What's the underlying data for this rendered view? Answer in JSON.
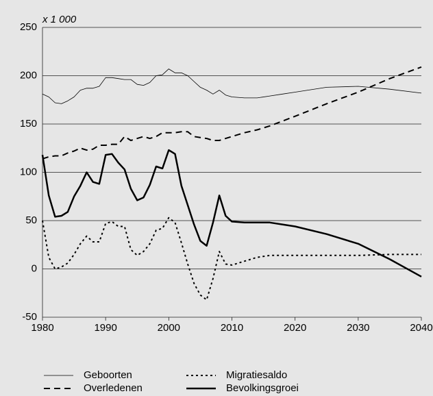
{
  "chart_data": {
    "type": "line",
    "ylabel": "x 1 000",
    "x": [
      1980,
      1981,
      1982,
      1983,
      1984,
      1985,
      1986,
      1987,
      1988,
      1989,
      1990,
      1991,
      1992,
      1993,
      1994,
      1995,
      1996,
      1997,
      1998,
      1999,
      2000,
      2001,
      2002,
      2003,
      2004,
      2005,
      2006,
      2007,
      2008,
      2009,
      2010,
      2012,
      2014,
      2016,
      2018,
      2020,
      2025,
      2030,
      2035,
      2040
    ],
    "series": [
      {
        "name": "Geboorten",
        "color": "#000000",
        "width": 0.8,
        "dash": "none",
        "values": [
          181,
          178,
          172,
          171,
          174,
          178,
          185,
          187,
          187,
          189,
          198,
          198,
          197,
          196,
          196,
          191,
          190,
          193,
          200,
          201,
          207,
          203,
          203,
          200,
          194,
          188,
          185,
          181,
          185,
          180,
          178,
          177,
          177,
          179,
          181,
          183,
          188,
          189,
          186,
          182
        ]
      },
      {
        "name": "Overledenen",
        "color": "#000000",
        "width": 2,
        "dash": "9 6",
        "values": [
          114,
          116,
          117,
          117,
          120,
          122,
          125,
          123,
          124,
          128,
          128,
          129,
          129,
          137,
          133,
          135,
          137,
          135,
          137,
          141,
          141,
          141,
          142,
          142,
          137,
          136,
          135,
          133,
          133,
          135,
          137,
          141,
          144,
          148,
          153,
          158,
          171,
          183,
          197,
          209
        ]
      },
      {
        "name": "Migratiesaldo",
        "color": "#000000",
        "width": 2,
        "dash": "3 4",
        "values": [
          50,
          12,
          0,
          2,
          6,
          15,
          26,
          34,
          28,
          28,
          47,
          49,
          44,
          44,
          20,
          14,
          18,
          26,
          40,
          42,
          53,
          48,
          27,
          5,
          -15,
          -27,
          -32,
          -10,
          18,
          5,
          4,
          8,
          12,
          14,
          14,
          14,
          14,
          14,
          15,
          15
        ]
      },
      {
        "name": "Bevolkingsgroei",
        "color": "#000000",
        "width": 2.5,
        "dash": "none",
        "values": [
          118,
          76,
          54,
          55,
          59,
          75,
          86,
          100,
          90,
          88,
          118,
          119,
          110,
          103,
          83,
          71,
          74,
          87,
          106,
          104,
          123,
          119,
          86,
          66,
          46,
          29,
          24,
          48,
          76,
          55,
          49,
          48,
          48,
          48,
          46,
          44,
          36,
          26,
          10,
          -8
        ]
      }
    ],
    "xlim": [
      1980,
      2040
    ],
    "xticks": [
      1980,
      1990,
      2000,
      2010,
      2020,
      2030,
      2040
    ],
    "ylim": [
      -50,
      250
    ],
    "yticks": [
      -50,
      0,
      50,
      100,
      150,
      200,
      250
    ],
    "grid": true,
    "legend": "bottom"
  }
}
